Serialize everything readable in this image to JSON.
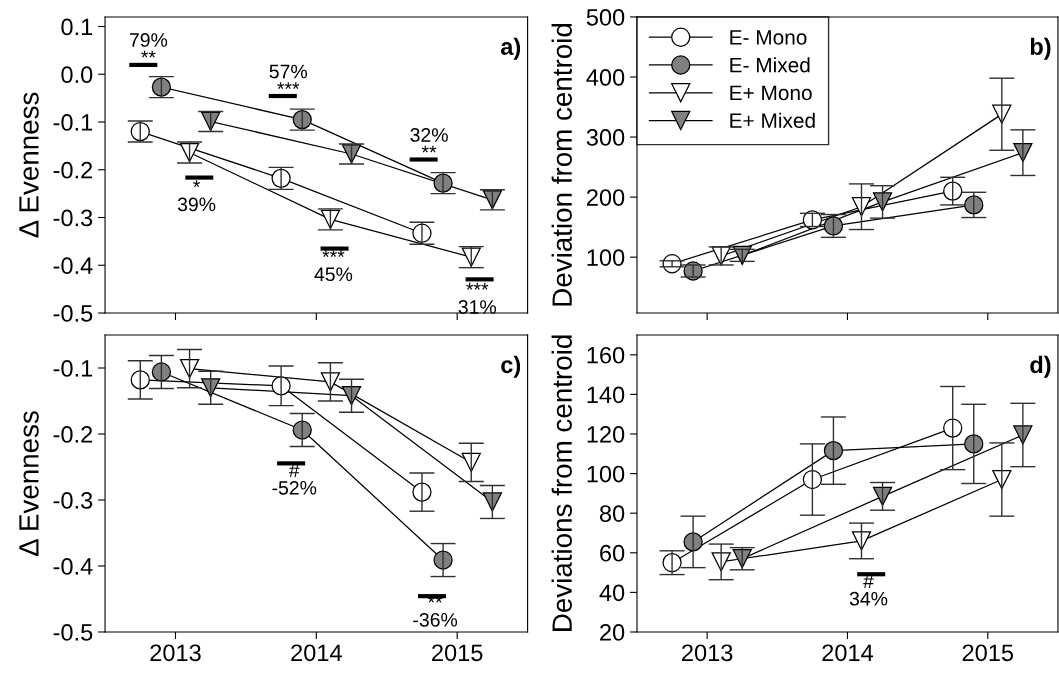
{
  "chart_data": [
    {
      "type": "line",
      "ylabel": "Δ Evenness",
      "xlim": [
        2012.5,
        2015.5
      ],
      "xticks": [
        2013,
        2014,
        2015
      ],
      "ylim": [
        -0.5,
        0.12
      ],
      "yticks": [
        -0.5,
        -0.4,
        -0.3,
        -0.2,
        -0.1,
        {
          "value": 0,
          "label": "0.0"
        },
        0.1
      ],
      "tick_labels": "y",
      "grid": false,
      "legend": false,
      "series": [
        {
          "color": "#ffffff",
          "marker": "circle",
          "x": [
            2012.75,
            2013.75,
            2014.75
          ],
          "values": [
            -0.12,
            -0.218,
            -0.333
          ],
          "errors": [
            0.022,
            0.023,
            0.023
          ]
        },
        {
          "color": "#808080",
          "marker": "circle",
          "x": [
            2012.9,
            2013.9,
            2014.9
          ],
          "values": [
            -0.027,
            -0.095,
            -0.228
          ],
          "errors": [
            0.022,
            0.022,
            0.022
          ]
        },
        {
          "color": "#ffffff",
          "marker": "triangle",
          "x": [
            2013.1,
            2014.1,
            2015.1
          ],
          "values": [
            -0.164,
            -0.304,
            -0.383
          ],
          "errors": [
            0.022,
            0.022,
            0.022
          ]
        },
        {
          "color": "#808080",
          "marker": "triangle",
          "x": [
            2013.25,
            2014.25,
            2015.25
          ],
          "values": [
            -0.099,
            -0.167,
            -0.263
          ],
          "errors": [
            0.021,
            0.021,
            0.021
          ]
        }
      ],
      "annotations": [
        "a)",
        {
          "text": "79%\n**",
          "x": 2012.9,
          "y": -0.027
        },
        {
          "text": "57%\n***",
          "x": 2013.9,
          "y": -0.095
        },
        {
          "text": "32%\n**",
          "x": 2014.9,
          "y": -0.228
        },
        {
          "text": "*\n39%",
          "x": 2013.1,
          "y": -0.164
        },
        {
          "text": "***\n45%",
          "x": 2014.1,
          "y": -0.304
        },
        {
          "text": "***\n31%",
          "x": 2015.1,
          "y": -0.383
        }
      ]
    },
    {
      "type": "line",
      "ylabel": "Deviation from centroid",
      "xlim": [
        2012.5,
        2015.5
      ],
      "xticks": [
        2013,
        2014,
        2015
      ],
      "ylim": [
        7,
        500
      ],
      "yticks": [
        100,
        200,
        300,
        400,
        500
      ],
      "tick_labels": "y",
      "grid": false,
      "legend": "top left",
      "series": [
        {
          "name": "E- Mono",
          "color": "#ffffff",
          "marker": "circle",
          "x": [
            2012.75,
            2013.75,
            2014.75
          ],
          "values": [
            89,
            162,
            210
          ],
          "errors": [
            5,
            11,
            23
          ]
        },
        {
          "name": "E- Mixed",
          "color": "#808080",
          "marker": "circle",
          "x": [
            2012.9,
            2013.9,
            2014.9
          ],
          "values": [
            77,
            152,
            187
          ],
          "errors": [
            10,
            19,
            21
          ]
        },
        {
          "name": "E+ Mono",
          "color": "#ffffff",
          "marker": "triangle",
          "x": [
            2013.1,
            2014.1,
            2015.1
          ],
          "values": [
            102,
            184,
            338
          ],
          "errors": [
            15,
            38,
            60
          ]
        },
        {
          "name": "E+ Mixed",
          "color": "#808080",
          "marker": "triangle",
          "x": [
            2013.25,
            2014.25,
            2015.25
          ],
          "values": [
            103,
            192,
            274
          ],
          "errors": [
            10,
            27,
            38
          ]
        }
      ],
      "annotations": [
        "b)"
      ]
    },
    {
      "type": "line",
      "ylabel": "Δ Evenness",
      "xlim": [
        2012.5,
        2015.5
      ],
      "xticks": [
        2013,
        2014,
        2015
      ],
      "ylim": [
        -0.5,
        -0.05
      ],
      "yticks": [
        -0.5,
        -0.4,
        -0.3,
        -0.2,
        -0.1
      ],
      "grid": false,
      "legend": false,
      "series": [
        {
          "color": "#ffffff",
          "marker": "circle",
          "x": [
            2012.75,
            2013.75,
            2014.75
          ],
          "values": [
            -0.118,
            -0.127,
            -0.288
          ],
          "errors": [
            0.029,
            0.03,
            0.029
          ]
        },
        {
          "color": "#808080",
          "marker": "circle",
          "x": [
            2012.9,
            2013.9,
            2014.9
          ],
          "values": [
            -0.106,
            -0.194,
            -0.391
          ],
          "errors": [
            0.025,
            0.025,
            0.025
          ]
        },
        {
          "color": "#ffffff",
          "marker": "triangle",
          "x": [
            2013.1,
            2014.1,
            2015.1
          ],
          "values": [
            -0.101,
            -0.121,
            -0.243
          ],
          "errors": [
            0.029,
            0.029,
            0.029
          ]
        },
        {
          "color": "#808080",
          "marker": "triangle",
          "x": [
            2013.25,
            2014.25,
            2015.25
          ],
          "values": [
            -0.13,
            -0.142,
            -0.303
          ],
          "errors": [
            0.025,
            0.025,
            0.025
          ]
        }
      ],
      "annotations": [
        "c)",
        {
          "text": "#\n-52%",
          "x": 2013.9,
          "y": -0.194
        },
        {
          "text": "**\n-36%",
          "x": 2014.9,
          "y": -0.391
        }
      ]
    },
    {
      "type": "line",
      "ylabel": "Deviations from centroid",
      "xlim": [
        2012.5,
        2015.5
      ],
      "xticks": [
        2013,
        2014,
        2015
      ],
      "ylim": [
        20,
        170
      ],
      "yticks": [
        20,
        40,
        60,
        80,
        100,
        120,
        140,
        160
      ],
      "grid": false,
      "legend": false,
      "series": [
        {
          "color": "#ffffff",
          "marker": "circle",
          "x": [
            2012.75,
            2013.75,
            2014.75
          ],
          "values": [
            55,
            97,
            123
          ],
          "errors": [
            6,
            18,
            21
          ]
        },
        {
          "color": "#808080",
          "marker": "circle",
          "x": [
            2012.9,
            2013.9,
            2014.9
          ],
          "values": [
            65.5,
            111.6,
            115
          ],
          "errors": [
            13,
            17,
            20
          ]
        },
        {
          "color": "#ffffff",
          "marker": "triangle",
          "x": [
            2013.1,
            2014.1,
            2015.1
          ],
          "values": [
            55.4,
            66,
            97
          ],
          "errors": [
            9,
            9,
            18.5
          ]
        },
        {
          "color": "#808080",
          "marker": "triangle",
          "x": [
            2013.25,
            2014.25,
            2015.25
          ],
          "values": [
            57,
            88.5,
            119.5
          ],
          "errors": [
            5.6,
            7,
            16
          ]
        }
      ],
      "annotations": [
        "d)",
        {
          "text": "#\n34%",
          "x": 2014.1,
          "y": 66
        }
      ]
    }
  ]
}
